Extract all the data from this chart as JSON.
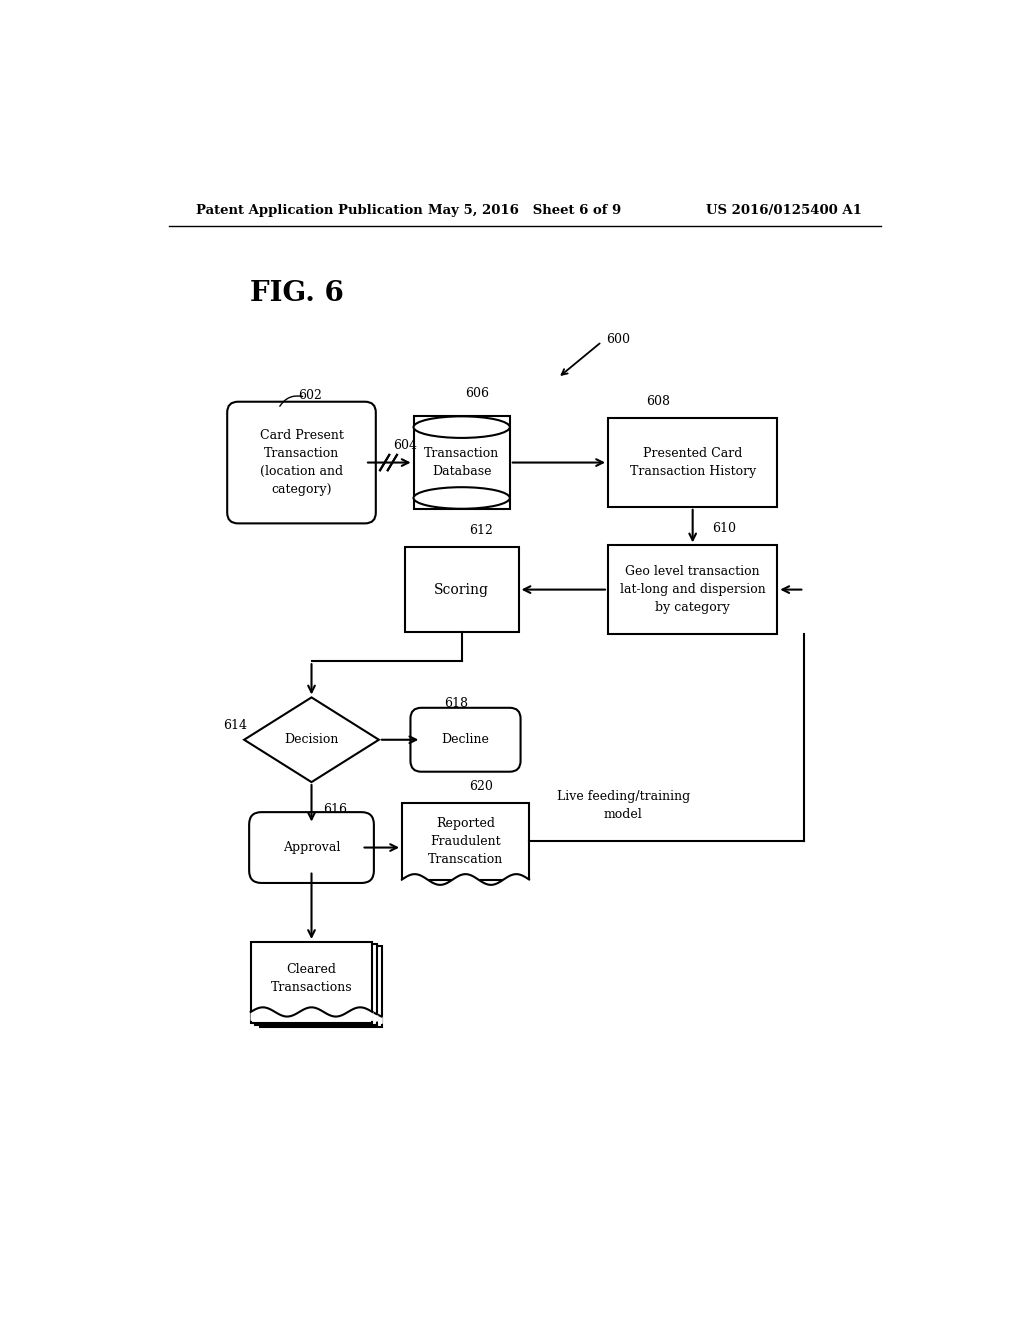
{
  "bg_color": "#ffffff",
  "header_left": "Patent Application Publication",
  "header_mid": "May 5, 2016   Sheet 6 of 9",
  "header_right": "US 2016/0125400 A1",
  "fig_label": "FIG. 6",
  "label_600": "600",
  "label_602": "602",
  "label_604": "604",
  "label_606": "606",
  "label_608": "608",
  "label_610": "610",
  "label_612": "612",
  "label_614": "614",
  "label_616": "616",
  "label_618": "618",
  "label_620": "620",
  "text_602": "Card Present\nTransaction\n(location and\ncategory)",
  "text_606": "Transaction\nDatabase",
  "text_608": "Presented Card\nTransaction History",
  "text_610": "Geo level transaction\nlat-long and dispersion\nby category",
  "text_612": "Scoring",
  "text_614": "Decision",
  "text_616": "Approval",
  "text_618": "Decline",
  "text_620": "Reported\nFraudulent\nTranscation",
  "text_cleared": "Cleared\nTransactions",
  "text_live": "Live feeding/training\nmodel"
}
